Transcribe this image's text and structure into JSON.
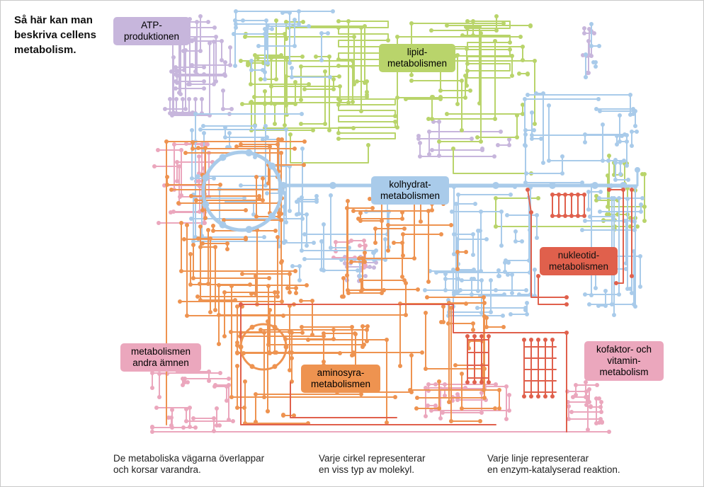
{
  "heading": {
    "lines": [
      "Så här kan man",
      "beskriva cellens",
      "metabolism."
    ]
  },
  "labels": {
    "atp": {
      "lines": [
        "ATP-",
        "produktionen"
      ]
    },
    "lipid": {
      "lines": [
        "lipid-",
        "metabolismen"
      ]
    },
    "kolhydrat": {
      "lines": [
        "kolhydrat-",
        "metabolismen"
      ]
    },
    "nukleotid": {
      "lines": [
        "nukleotid-",
        "metabolismen"
      ]
    },
    "andra": {
      "lines": [
        "metabolismen",
        "andra ämnen"
      ]
    },
    "aminosyra": {
      "lines": [
        "aminosyra-",
        "metabolismen"
      ]
    },
    "kofaktor": {
      "lines": [
        "kofaktor- och",
        "vitamin-",
        "metabolism"
      ]
    }
  },
  "captions": {
    "overlap": [
      "De metaboliska vägarna överlappar",
      "och korsar varandra."
    ],
    "circle": [
      "Varje cirkel representerar",
      "en viss typ av molekyl."
    ],
    "line": [
      "Varje linje representerar",
      "en enzym-katalyserad reaktion."
    ]
  },
  "colors": {
    "atp": "#c7b6dc",
    "lipid": "#b9d46b",
    "kolhydrat": "#a9cbea",
    "nukleotid": "#e0604c",
    "andra": "#eba7bd",
    "aminosyra": "#ee9350",
    "kofaktor": "#eba7bd"
  }
}
